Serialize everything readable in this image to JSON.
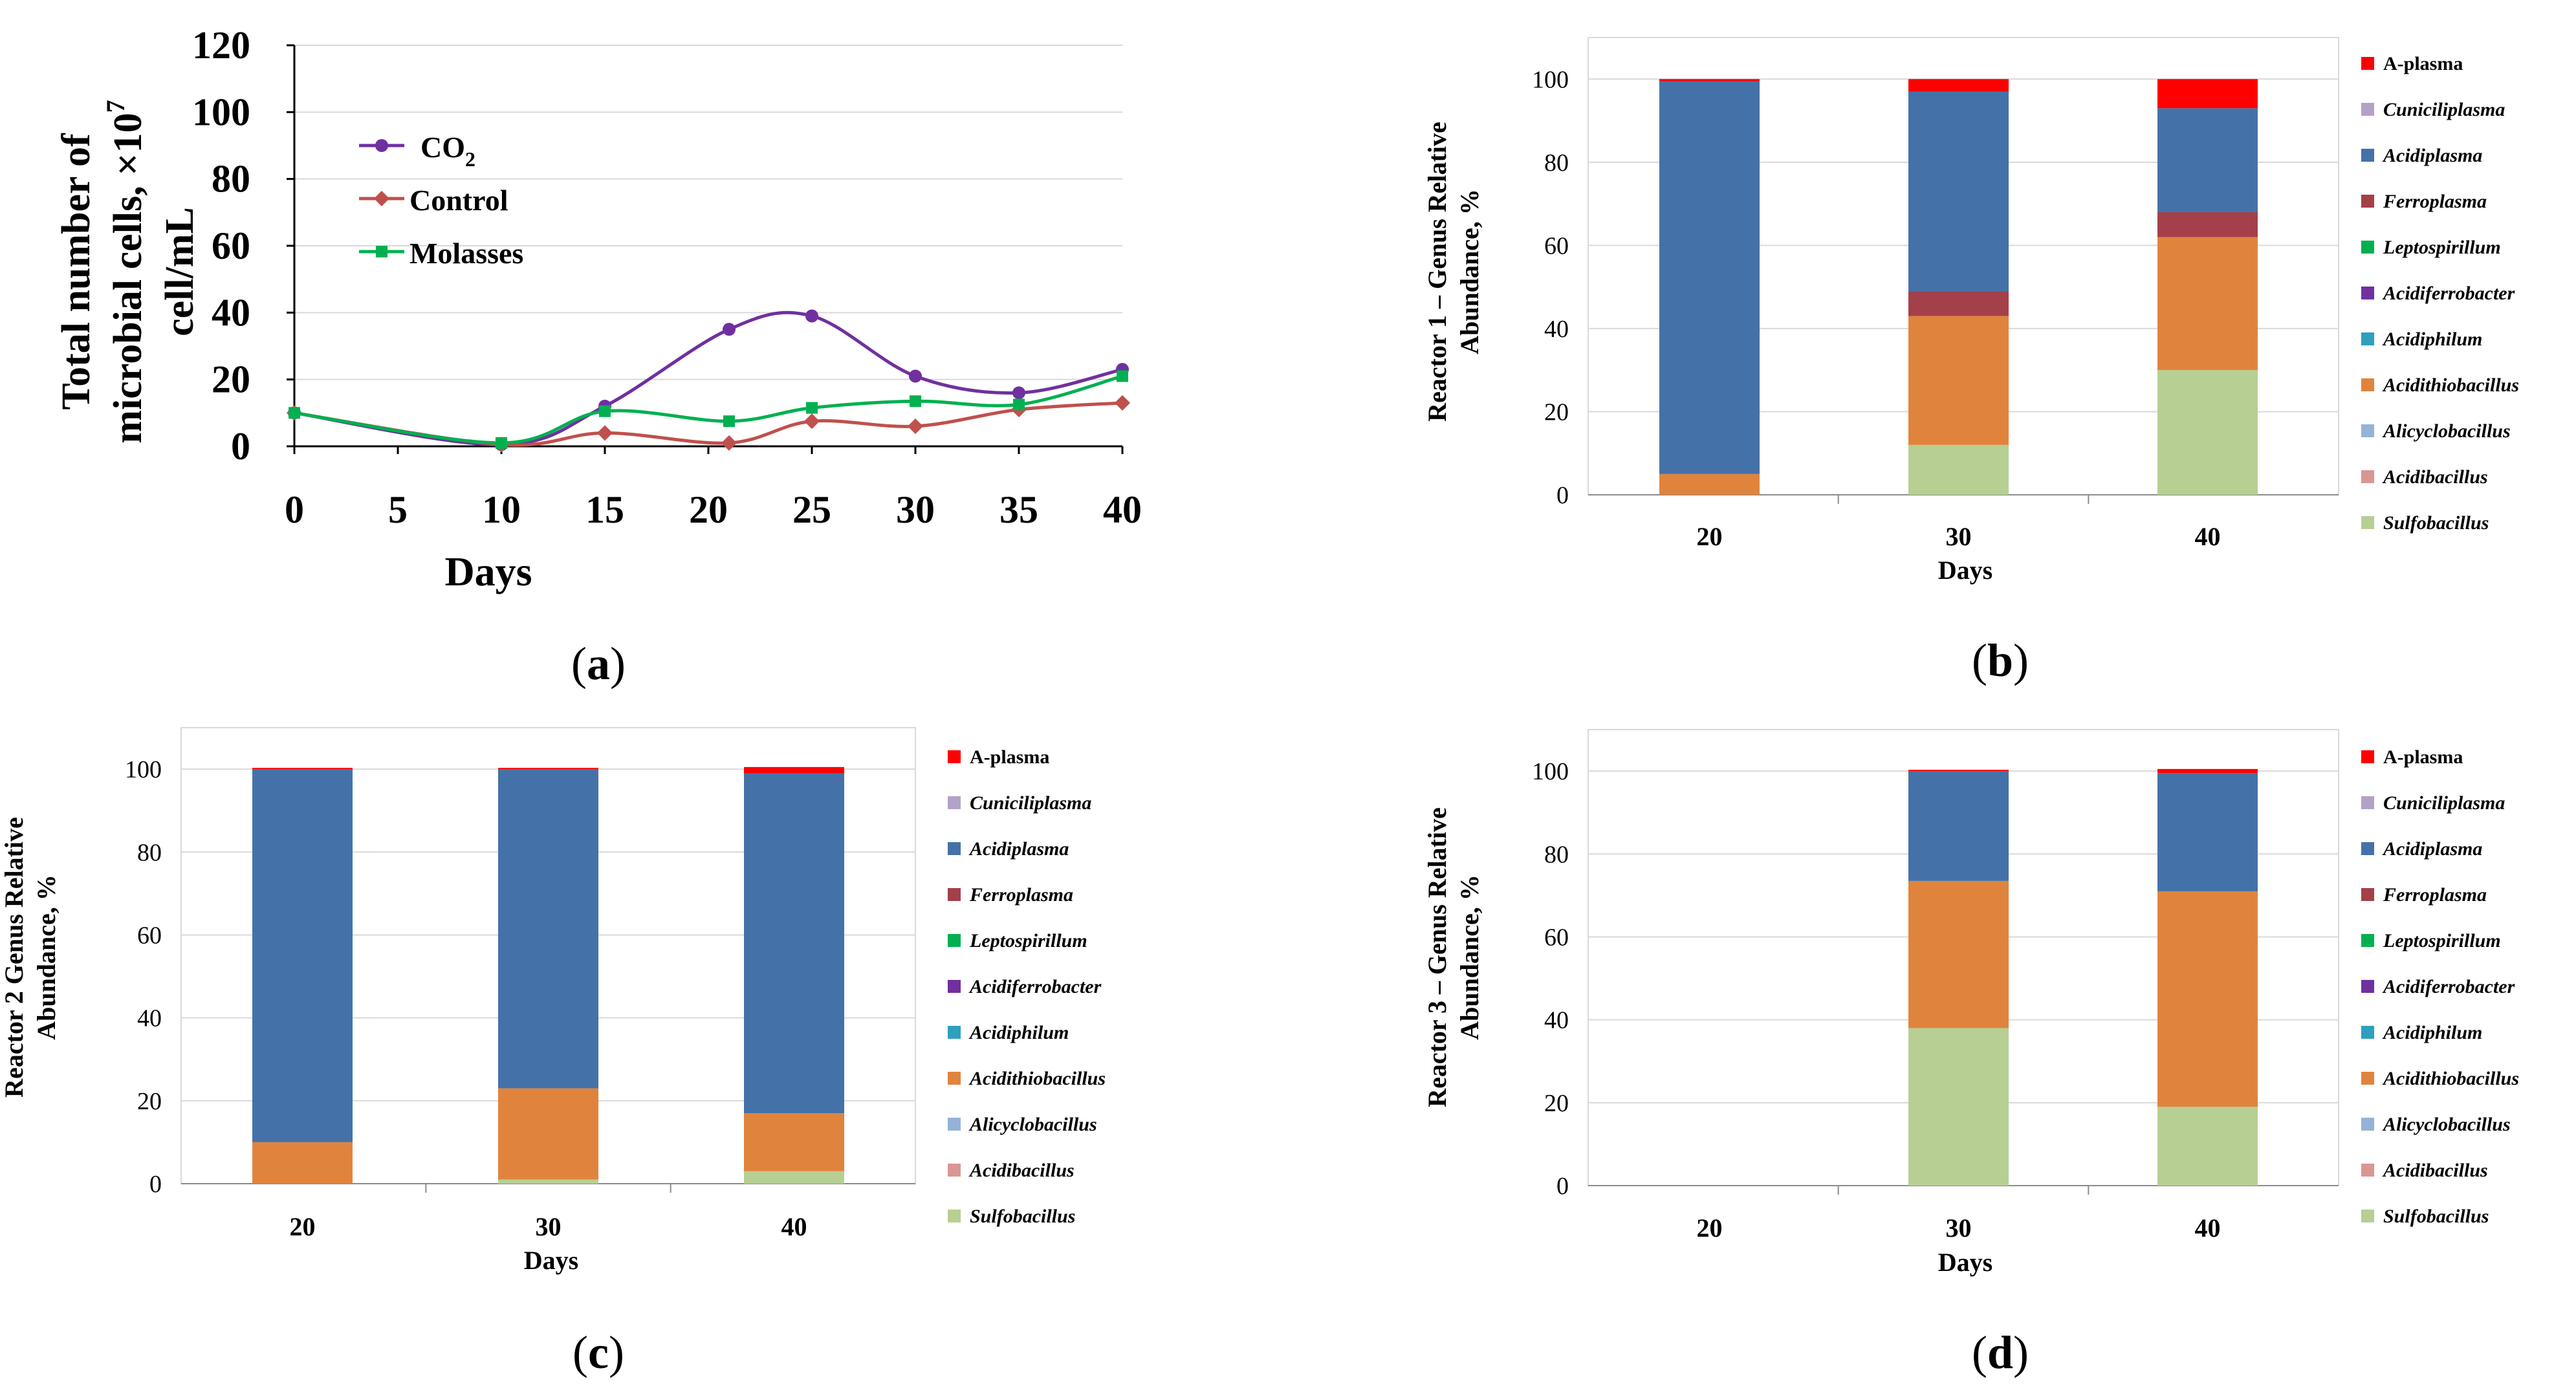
{
  "colors": {
    "A-plasma": "#ff0000",
    "Cuniciliplasma": "#b3a2c7",
    "Acidiplasma": "#4472a8",
    "Ferroplasma": "#a4404a",
    "Leptospirillum": "#00b050",
    "Acidiferrobacter": "#7030a0",
    "Acidiphilum": "#2e9fbd",
    "Acidithiobacillus": "#e0843d",
    "Alicyclobacillus": "#95b3d7",
    "Acidibacillus": "#d99694",
    "Sulfobacillus": "#b7cf93",
    "co2_line": "#7030a0",
    "control_line": "#c0504d",
    "molasses_line": "#00b050",
    "grid": "#d9d9d9",
    "axis": "#000000"
  },
  "chart_data": [
    {
      "id": "a",
      "type": "line",
      "panel_label": "(a)",
      "panel_letter": "a",
      "xlabel": "Days",
      "ylabel_lines": [
        "Total number of",
        "microbial cells, ×10",
        "cell/mL"
      ],
      "ylabel_superscript": "7",
      "xlim": [
        0,
        40
      ],
      "ylim": [
        0,
        120
      ],
      "xticks": [
        0,
        5,
        10,
        15,
        20,
        25,
        30,
        35,
        40
      ],
      "yticks": [
        0,
        20,
        40,
        60,
        80,
        100,
        120
      ],
      "grid": true,
      "legend_position": "top-left",
      "series": [
        {
          "name": "CO",
          "subscript": "2",
          "marker": "circle",
          "x": [
            0,
            10,
            15,
            21,
            25,
            30,
            35,
            40
          ],
          "y": [
            10,
            0.5,
            12,
            35,
            39,
            21,
            16,
            23
          ]
        },
        {
          "name": "Control",
          "subscript": "",
          "marker": "diamond",
          "x": [
            0,
            10,
            15,
            21,
            25,
            30,
            35,
            40
          ],
          "y": [
            10,
            0.5,
            4,
            1,
            7.5,
            6,
            11,
            13
          ]
        },
        {
          "name": "Molasses",
          "subscript": "",
          "marker": "square",
          "x": [
            0,
            10,
            15,
            21,
            25,
            30,
            35,
            40
          ],
          "y": [
            10,
            1,
            10.5,
            7.5,
            11.5,
            13.5,
            12.5,
            21
          ]
        }
      ]
    },
    {
      "id": "b",
      "type": "bar",
      "stacked": true,
      "panel_label": "(b)",
      "panel_letter": "b",
      "xlabel": "Days",
      "ylabel_lines": [
        "Reactor 1 – Genus Relative",
        "Abundance, %"
      ],
      "categories": [
        "20",
        "30",
        "40"
      ],
      "ylim": [
        0,
        110
      ],
      "yticks": [
        0,
        20,
        40,
        60,
        80,
        100
      ],
      "grid": true,
      "legend_position": "right",
      "series": [
        {
          "name": "Sulfobacillus",
          "values": [
            0,
            12,
            30
          ]
        },
        {
          "name": "Acidibacillus",
          "values": [
            0,
            0,
            0
          ]
        },
        {
          "name": "Alicyclobacillus",
          "values": [
            0,
            0,
            0
          ]
        },
        {
          "name": "Acidithiobacillus",
          "values": [
            5,
            31,
            32
          ]
        },
        {
          "name": "Acidiphilum",
          "values": [
            0,
            0,
            0
          ]
        },
        {
          "name": "Acidiferrobacter",
          "values": [
            0,
            0,
            0
          ]
        },
        {
          "name": "Leptospirillum",
          "values": [
            0,
            0,
            0
          ]
        },
        {
          "name": "Ferroplasma",
          "values": [
            0,
            6,
            6
          ]
        },
        {
          "name": "Acidiplasma",
          "values": [
            94.5,
            48,
            25
          ]
        },
        {
          "name": "Cuniciliplasma",
          "values": [
            0,
            0,
            0
          ]
        },
        {
          "name": "A-plasma",
          "values": [
            0.5,
            3,
            7
          ]
        }
      ]
    },
    {
      "id": "c",
      "type": "bar",
      "stacked": true,
      "panel_label": "(c)",
      "panel_letter": "c",
      "xlabel": "Days",
      "ylabel_lines": [
        "Reactor 2 Genus Relative",
        "Abundance, %"
      ],
      "categories": [
        "20",
        "30",
        "40"
      ],
      "ylim": [
        0,
        110
      ],
      "yticks": [
        0,
        20,
        40,
        60,
        80,
        100
      ],
      "grid": true,
      "legend_position": "right",
      "series": [
        {
          "name": "Sulfobacillus",
          "values": [
            0,
            1,
            3
          ]
        },
        {
          "name": "Acidibacillus",
          "values": [
            0,
            0,
            0
          ]
        },
        {
          "name": "Alicyclobacillus",
          "values": [
            0,
            0,
            0
          ]
        },
        {
          "name": "Acidithiobacillus",
          "values": [
            10,
            22,
            14
          ]
        },
        {
          "name": "Acidiphilum",
          "values": [
            0,
            0,
            0
          ]
        },
        {
          "name": "Acidiferrobacter",
          "values": [
            0,
            0,
            0
          ]
        },
        {
          "name": "Leptospirillum",
          "values": [
            0,
            0,
            0
          ]
        },
        {
          "name": "Ferroplasma",
          "values": [
            0,
            0,
            0
          ]
        },
        {
          "name": "Acidiplasma",
          "values": [
            90,
            77,
            82
          ]
        },
        {
          "name": "Cuniciliplasma",
          "values": [
            0,
            0,
            0
          ]
        },
        {
          "name": "A-plasma",
          "values": [
            0.3,
            0.3,
            1.5
          ]
        }
      ]
    },
    {
      "id": "d",
      "type": "bar",
      "stacked": true,
      "panel_label": "(d)",
      "panel_letter": "d",
      "xlabel": "Days",
      "ylabel_lines": [
        "Reactor 3 – Genus Relative",
        "Abundance, %"
      ],
      "categories": [
        "20",
        "30",
        "40"
      ],
      "ylim": [
        0,
        110
      ],
      "yticks": [
        0,
        20,
        40,
        60,
        80,
        100
      ],
      "grid": true,
      "legend_position": "right",
      "series": [
        {
          "name": "Sulfobacillus",
          "values": [
            0,
            38,
            19
          ]
        },
        {
          "name": "Acidibacillus",
          "values": [
            0,
            0,
            0
          ]
        },
        {
          "name": "Alicyclobacillus",
          "values": [
            0,
            0,
            0
          ]
        },
        {
          "name": "Acidithiobacillus",
          "values": [
            0,
            35.5,
            52
          ]
        },
        {
          "name": "Acidiphilum",
          "values": [
            0,
            0,
            0
          ]
        },
        {
          "name": "Acidiferrobacter",
          "values": [
            0,
            0,
            0
          ]
        },
        {
          "name": "Leptospirillum",
          "values": [
            0,
            0,
            0
          ]
        },
        {
          "name": "Ferroplasma",
          "values": [
            0,
            0,
            0
          ]
        },
        {
          "name": "Acidiplasma",
          "values": [
            0,
            26.5,
            28.5
          ]
        },
        {
          "name": "Cuniciliplasma",
          "values": [
            0,
            0,
            0
          ]
        },
        {
          "name": "A-plasma",
          "values": [
            0,
            0.3,
            1
          ]
        }
      ]
    }
  ],
  "legend_genera": [
    {
      "name": "A-plasma",
      "italic": false
    },
    {
      "name": "Cuniciliplasma",
      "italic": true
    },
    {
      "name": "Acidiplasma",
      "italic": true
    },
    {
      "name": "Ferroplasma",
      "italic": true
    },
    {
      "name": "Leptospirillum",
      "italic": true
    },
    {
      "name": "Acidiferrobacter",
      "italic": true
    },
    {
      "name": "Acidiphilum",
      "italic": true
    },
    {
      "name": "Acidithiobacillus",
      "italic": true
    },
    {
      "name": "Alicyclobacillus",
      "italic": true
    },
    {
      "name": "Acidibacillus",
      "italic": true
    },
    {
      "name": "Sulfobacillus",
      "italic": true
    }
  ]
}
